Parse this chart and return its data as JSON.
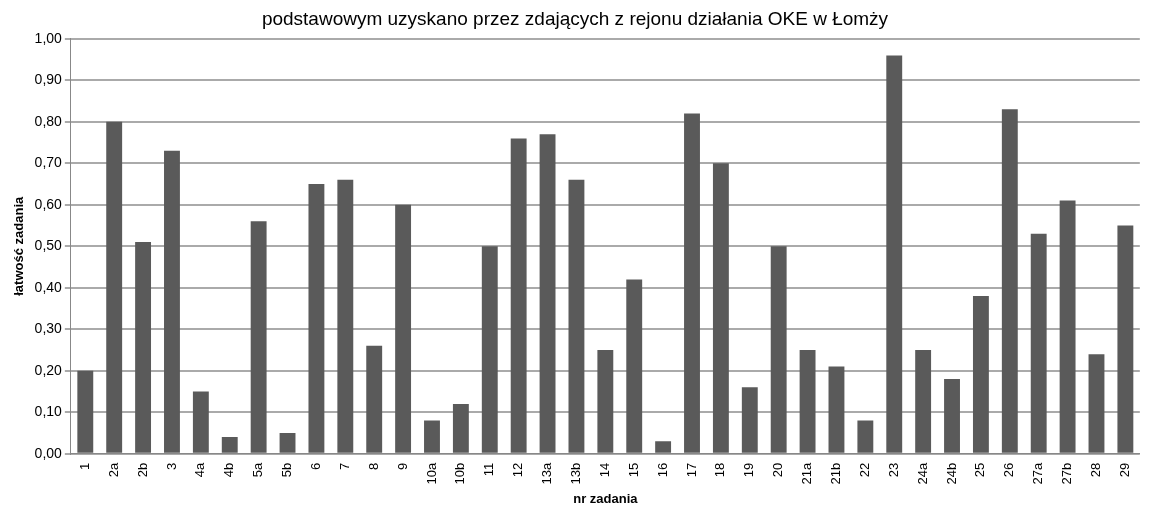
{
  "chart_data": {
    "type": "bar",
    "title": "podstawowym uzyskano przez zdających z rejonu działania OKE w Łomży",
    "xlabel": "nr zadania",
    "ylabel": "łatwość zadania",
    "categories": [
      "1",
      "2a",
      "2b",
      "3",
      "4a",
      "4b",
      "5a",
      "5b",
      "6",
      "7",
      "8",
      "9",
      "10a",
      "10b",
      "11",
      "12",
      "13a",
      "13b",
      "14",
      "15",
      "16",
      "17",
      "18",
      "19",
      "20",
      "21a",
      "21b",
      "22",
      "23",
      "24a",
      "24b",
      "25",
      "26",
      "27a",
      "27b",
      "28",
      "29"
    ],
    "values": [
      0.2,
      0.8,
      0.51,
      0.73,
      0.15,
      0.04,
      0.56,
      0.05,
      0.65,
      0.66,
      0.26,
      0.6,
      0.08,
      0.12,
      0.5,
      0.76,
      0.77,
      0.66,
      0.25,
      0.42,
      0.03,
      0.82,
      0.7,
      0.16,
      0.5,
      0.25,
      0.21,
      0.08,
      0.96,
      0.25,
      0.18,
      0.38,
      0.83,
      0.53,
      0.61,
      0.24,
      0.55
    ],
    "color": "#5a5a5a",
    "ylim": [
      0,
      1
    ],
    "yticks": [
      {
        "value": 0,
        "label": "0,00"
      },
      {
        "value": 0.1,
        "label": "0,10"
      },
      {
        "value": 0.2,
        "label": "0,20"
      },
      {
        "value": 0.3,
        "label": "0,30"
      },
      {
        "value": 0.4,
        "label": "0,40"
      },
      {
        "value": 0.5,
        "label": "0,50"
      },
      {
        "value": 0.6,
        "label": "0,60"
      },
      {
        "value": 0.7,
        "label": "0,70"
      },
      {
        "value": 0.8,
        "label": "0,80"
      },
      {
        "value": 0.9,
        "label": "0,90"
      },
      {
        "value": 1,
        "label": "1,00"
      }
    ],
    "grid": "y",
    "legend": false
  }
}
